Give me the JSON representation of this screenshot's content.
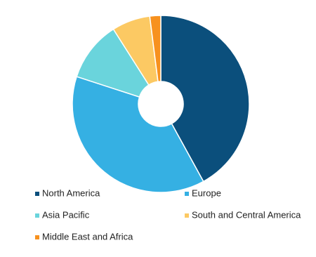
{
  "chart_data": {
    "type": "donut",
    "categories": [
      "North America",
      "Europe",
      "Asia Pacific",
      "South and Central America",
      "Middle East and Africa"
    ],
    "values": [
      42,
      38,
      11,
      7,
      2
    ],
    "colors": [
      "#0b4f7c",
      "#35b0e3",
      "#6ad4dc",
      "#fcc963",
      "#f7911e"
    ],
    "legend": "bottom"
  }
}
